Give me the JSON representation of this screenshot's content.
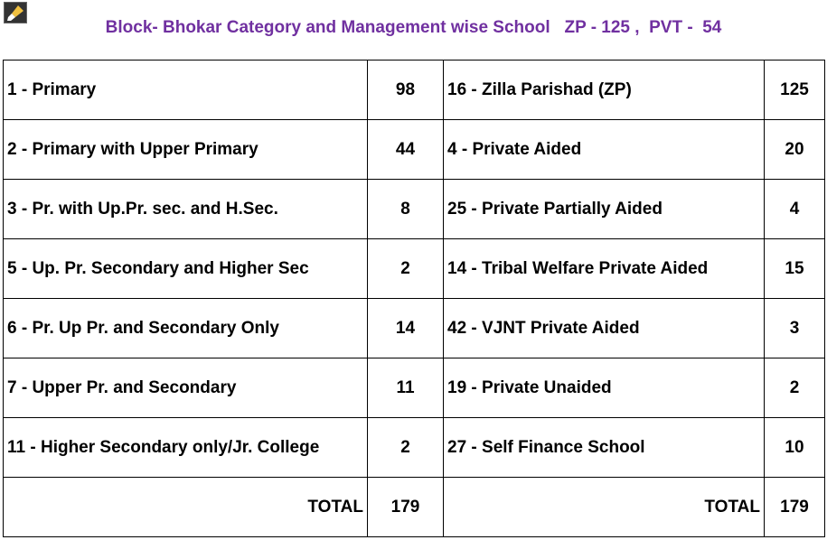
{
  "header": {
    "title": "Block- Bhokar Category and Management wise School   ZP - 125 ,  PVT -  54"
  },
  "table": {
    "rows": [
      [
        "1 - Primary",
        98,
        "16 - Zilla Parishad (ZP)",
        125
      ],
      [
        "2 - Primary with Upper Primary",
        44,
        "4 - Private Aided",
        20
      ],
      [
        "3 - Pr. with Up.Pr. sec. and H.Sec.",
        8,
        "25 - Private Partially Aided",
        4
      ],
      [
        "5 - Up. Pr. Secondary and Higher Sec",
        2,
        "14 - Tribal Welfare Private Aided",
        15
      ],
      [
        "6 - Pr. Up Pr. and Secondary Only",
        14,
        "42 - VJNT Private Aided",
        3
      ],
      [
        "7 - Upper Pr. and Secondary",
        11,
        "19 - Private Unaided",
        2
      ],
      [
        "11 - Higher Secondary only/Jr. College",
        2,
        "27 - Self Finance School",
        10
      ]
    ],
    "total": [
      "TOTAL",
      179,
      "TOTAL",
      179
    ]
  }
}
